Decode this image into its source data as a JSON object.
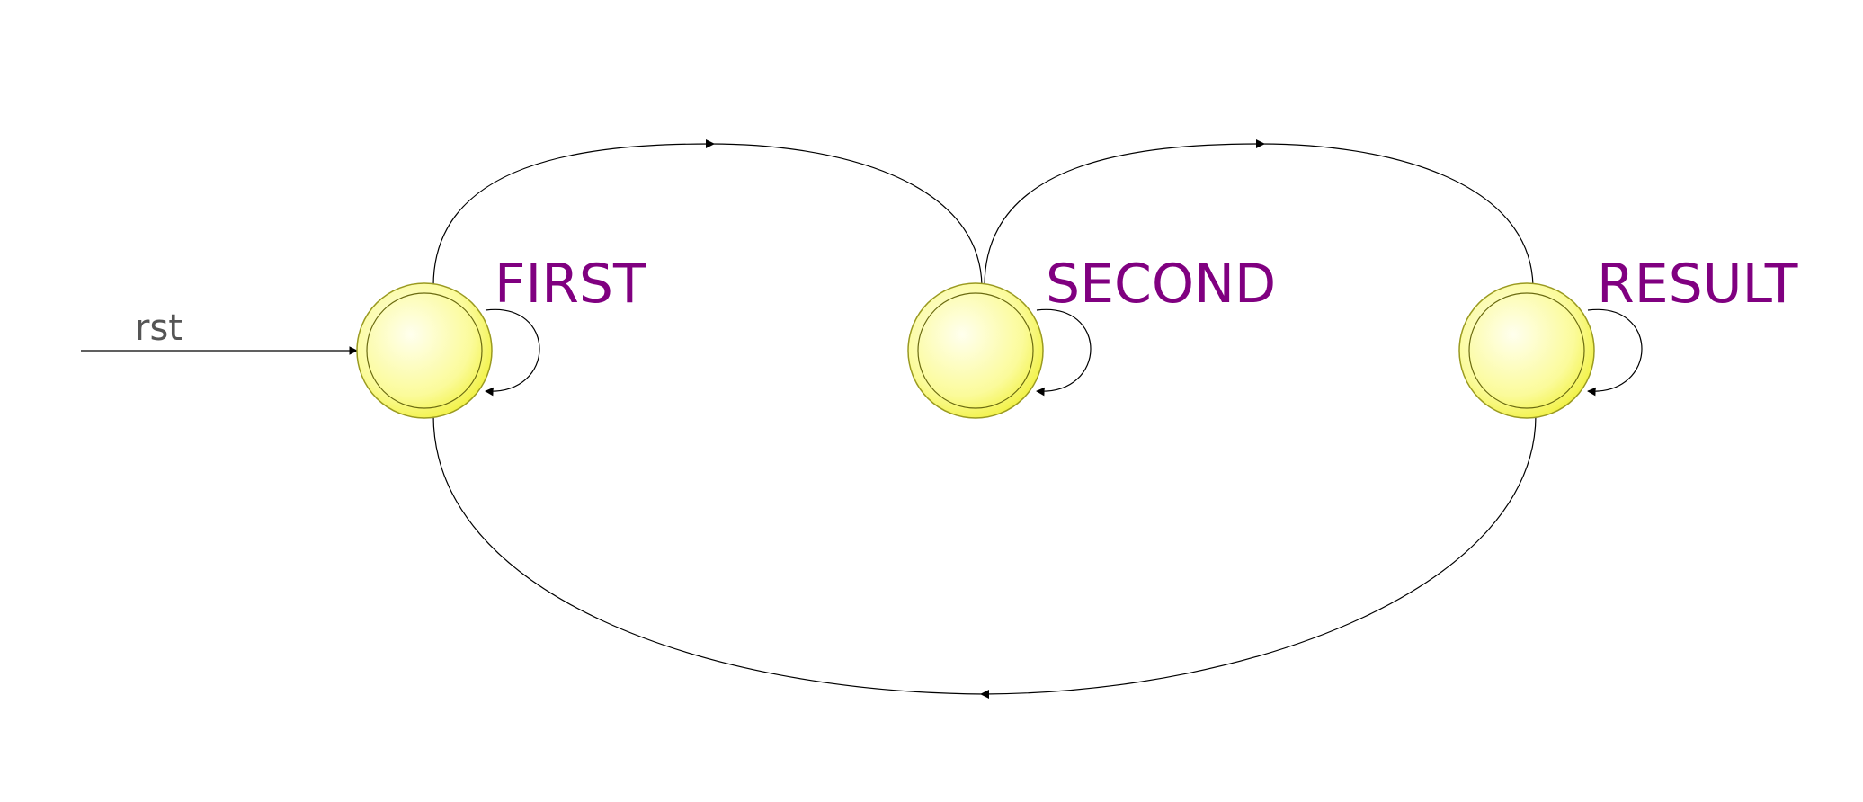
{
  "diagram": {
    "type": "finite-state-machine",
    "reset": {
      "label": "rst",
      "target": "FIRST"
    },
    "states": [
      {
        "id": "FIRST",
        "label": "FIRST"
      },
      {
        "id": "SECOND",
        "label": "SECOND"
      },
      {
        "id": "RESULT",
        "label": "RESULT"
      }
    ],
    "transitions": [
      {
        "from": "FIRST",
        "to": "FIRST"
      },
      {
        "from": "FIRST",
        "to": "SECOND"
      },
      {
        "from": "SECOND",
        "to": "SECOND"
      },
      {
        "from": "SECOND",
        "to": "RESULT"
      },
      {
        "from": "RESULT",
        "to": "RESULT"
      },
      {
        "from": "RESULT",
        "to": "FIRST"
      }
    ],
    "colors": {
      "state_fill_center": "#ffffee",
      "state_fill_edge": "#f2f24a",
      "state_stroke": "#9a9a20",
      "label_color": "#800080",
      "reset_label_color": "#555555",
      "edge_color": "#000000"
    }
  }
}
